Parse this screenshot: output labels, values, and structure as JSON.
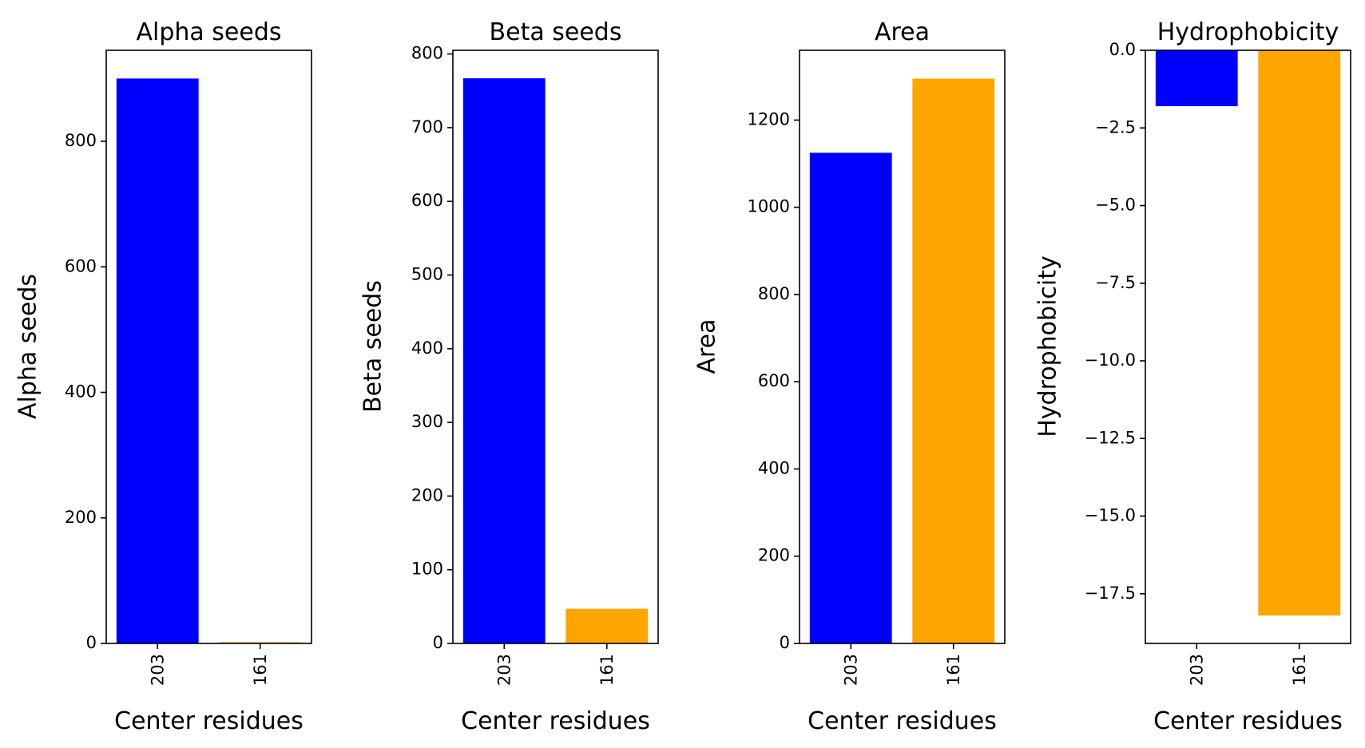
{
  "chart_data": [
    {
      "type": "bar",
      "title": "Alpha seeds",
      "xlabel": "Center residues",
      "ylabel": "Alpha seeds",
      "categories": [
        "203",
        "161"
      ],
      "values": [
        900,
        2
      ],
      "colors": [
        "#0000ff",
        "#ffa500"
      ],
      "ylim": [
        0,
        945
      ],
      "yticks": [
        0,
        200,
        400,
        600,
        800
      ],
      "ytick_labels": [
        "0",
        "200",
        "400",
        "600",
        "800"
      ],
      "grid": false,
      "legend": "none"
    },
    {
      "type": "bar",
      "title": "Beta seeds",
      "xlabel": "Center residues",
      "ylabel": "Beta seeds",
      "categories": [
        "203",
        "161"
      ],
      "values": [
        767,
        47
      ],
      "colors": [
        "#0000ff",
        "#ffa500"
      ],
      "ylim": [
        0,
        805
      ],
      "yticks": [
        0,
        100,
        200,
        300,
        400,
        500,
        600,
        700,
        800
      ],
      "ytick_labels": [
        "0",
        "100",
        "200",
        "300",
        "400",
        "500",
        "600",
        "700",
        "800"
      ],
      "grid": false,
      "legend": "none"
    },
    {
      "type": "bar",
      "title": "Area",
      "xlabel": "Center residues",
      "ylabel": "Area",
      "categories": [
        "203",
        "161"
      ],
      "values": [
        1125,
        1295
      ],
      "colors": [
        "#0000ff",
        "#ffa500"
      ],
      "ylim": [
        0,
        1360
      ],
      "yticks": [
        0,
        200,
        400,
        600,
        800,
        1000,
        1200
      ],
      "ytick_labels": [
        "0",
        "200",
        "400",
        "600",
        "800",
        "1000",
        "1200"
      ],
      "grid": false,
      "legend": "none"
    },
    {
      "type": "bar",
      "title": "Hydrophobicity",
      "xlabel": "Center residues",
      "ylabel": "Hydrophobicity",
      "categories": [
        "203",
        "161"
      ],
      "values": [
        -1.8,
        -18.2
      ],
      "colors": [
        "#0000ff",
        "#ffa500"
      ],
      "ylim": [
        -19.1,
        0
      ],
      "yticks": [
        0,
        -2.5,
        -5,
        -7.5,
        -10,
        -12.5,
        -15,
        -17.5
      ],
      "ytick_labels": [
        "0.0",
        "−2.5",
        "−5.0",
        "−7.5",
        "−10.0",
        "−12.5",
        "−15.0",
        "−17.5"
      ],
      "grid": false,
      "legend": "none"
    }
  ]
}
